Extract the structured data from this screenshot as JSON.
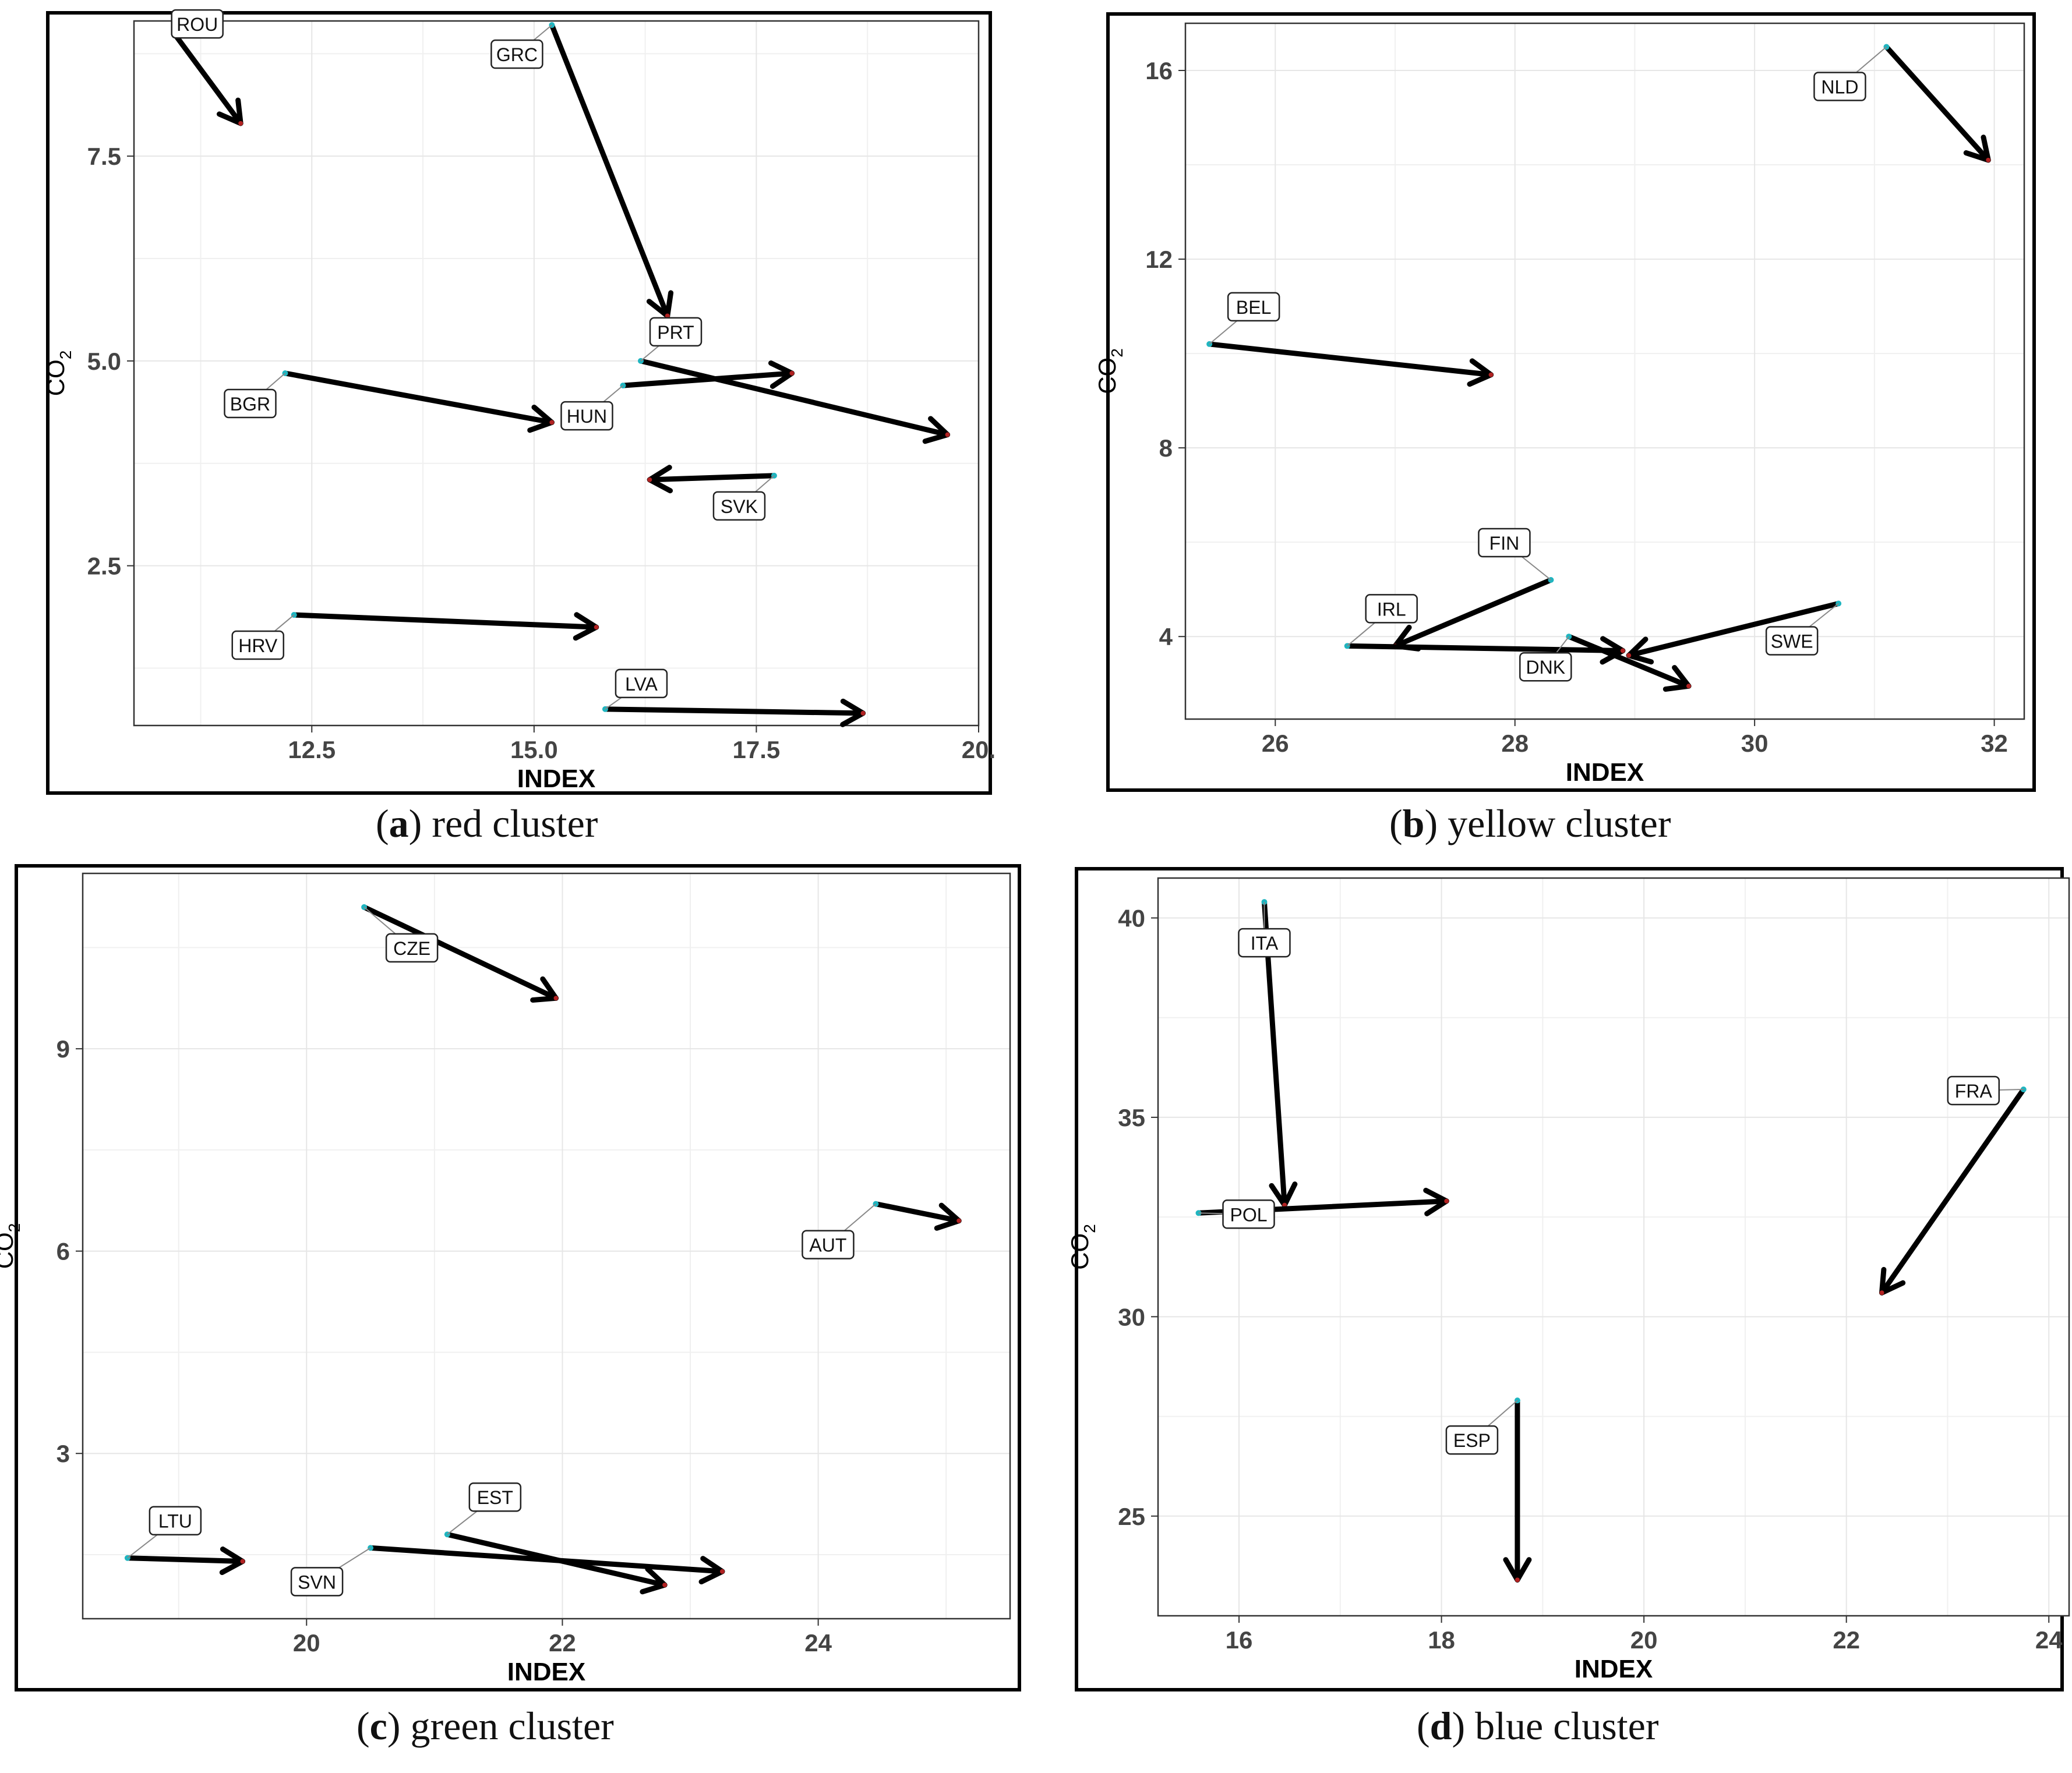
{
  "figure": {
    "panels": [
      {
        "letter": "a",
        "caption": "red cluster"
      },
      {
        "letter": "b",
        "caption": "yellow cluster"
      },
      {
        "letter": "c",
        "caption": "green cluster"
      },
      {
        "letter": "d",
        "caption": "blue cluster"
      }
    ]
  },
  "colors": {
    "start_point": "#1fb5c0",
    "end_point": "#b22222",
    "arrow": "#000000",
    "grid": "#e6e6e6",
    "tick_text": "#444444"
  },
  "chart_data": [
    {
      "type": "scatter",
      "title": "red cluster",
      "xlabel": "INDEX",
      "ylabel": "CO2",
      "xlim": [
        10.5,
        20.0
      ],
      "ylim": [
        0.55,
        9.15
      ],
      "xticks": [
        12.5,
        15.0,
        17.5,
        20.0
      ],
      "xtick_labels": [
        "12.5",
        "15.0",
        "17.5",
        "20."
      ],
      "yticks": [
        2.5,
        5.0,
        7.5
      ],
      "ytick_labels": [
        "2.5",
        "5.0",
        "7.5"
      ],
      "arrows": [
        {
          "label": "ROU",
          "x0": 10.95,
          "y0": 9.0,
          "x1": 11.7,
          "y1": 7.9
        },
        {
          "label": "GRC",
          "x0": 15.2,
          "y0": 9.1,
          "x1": 16.5,
          "y1": 5.55
        },
        {
          "label": "PRT",
          "x0": 16.2,
          "y0": 5.0,
          "x1": 19.65,
          "y1": 4.1
        },
        {
          "label": "HUN",
          "x0": 16.0,
          "y0": 4.7,
          "x1": 17.9,
          "y1": 4.85
        },
        {
          "label": "BGR",
          "x0": 12.2,
          "y0": 4.85,
          "x1": 15.2,
          "y1": 4.25
        },
        {
          "label": "SVK",
          "x0": 17.7,
          "y0": 3.6,
          "x1": 16.3,
          "y1": 3.55
        },
        {
          "label": "HRV",
          "x0": 12.3,
          "y0": 1.9,
          "x1": 15.7,
          "y1": 1.75
        },
        {
          "label": "LVA",
          "x0": 15.8,
          "y0": 0.75,
          "x1": 18.7,
          "y1": 0.7
        }
      ]
    },
    {
      "type": "scatter",
      "title": "yellow cluster",
      "xlabel": "INDEX",
      "ylabel": "CO2",
      "xlim": [
        25.25,
        32.25
      ],
      "ylim": [
        2.25,
        17.0
      ],
      "xticks": [
        26,
        28,
        30,
        32
      ],
      "xtick_labels": [
        "26",
        "28",
        "30",
        "32"
      ],
      "yticks": [
        4,
        8,
        12,
        16
      ],
      "ytick_labels": [
        "4",
        "8",
        "12",
        "16"
      ],
      "arrows": [
        {
          "label": "NLD",
          "x0": 31.1,
          "y0": 16.5,
          "x1": 31.95,
          "y1": 14.1
        },
        {
          "label": "BEL",
          "x0": 25.45,
          "y0": 10.2,
          "x1": 27.8,
          "y1": 9.55
        },
        {
          "label": "FIN",
          "x0": 28.3,
          "y0": 5.2,
          "x1": 27.0,
          "y1": 3.8
        },
        {
          "label": "IRL",
          "x0": 26.6,
          "y0": 3.8,
          "x1": 28.9,
          "y1": 3.7
        },
        {
          "label": "DNK",
          "x0": 28.45,
          "y0": 4.0,
          "x1": 29.45,
          "y1": 2.95
        },
        {
          "label": "SWE",
          "x0": 30.7,
          "y0": 4.7,
          "x1": 28.95,
          "y1": 3.6
        }
      ]
    },
    {
      "type": "scatter",
      "title": "green cluster",
      "xlabel": "INDEX",
      "ylabel": "CO2",
      "xlim": [
        18.25,
        25.5
      ],
      "ylim": [
        0.55,
        11.6
      ],
      "xticks": [
        20,
        22,
        24
      ],
      "xtick_labels": [
        "20",
        "22",
        "24"
      ],
      "yticks": [
        3,
        6,
        9
      ],
      "ytick_labels": [
        "3",
        "6",
        "9"
      ],
      "arrows": [
        {
          "label": "CZE",
          "x0": 20.45,
          "y0": 11.1,
          "x1": 21.95,
          "y1": 9.75
        },
        {
          "label": "AUT",
          "x0": 24.45,
          "y0": 6.7,
          "x1": 25.1,
          "y1": 6.45
        },
        {
          "label": "LTU",
          "x0": 18.6,
          "y0": 1.45,
          "x1": 19.5,
          "y1": 1.4
        },
        {
          "label": "SVN",
          "x0": 20.5,
          "y0": 1.6,
          "x1": 23.25,
          "y1": 1.25
        },
        {
          "label": "EST",
          "x0": 21.1,
          "y0": 1.8,
          "x1": 22.8,
          "y1": 1.05
        }
      ]
    },
    {
      "type": "scatter",
      "title": "blue cluster",
      "xlabel": "INDEX",
      "ylabel": "CO2",
      "xlim": [
        15.2,
        24.2
      ],
      "ylim": [
        22.5,
        41.0
      ],
      "xticks": [
        16,
        18,
        20,
        22,
        24
      ],
      "xtick_labels": [
        "16",
        "18",
        "20",
        "22",
        "24"
      ],
      "yticks": [
        25,
        30,
        35,
        40
      ],
      "ytick_labels": [
        "25",
        "30",
        "35",
        "40"
      ],
      "arrows": [
        {
          "label": "ITA",
          "x0": 16.25,
          "y0": 40.4,
          "x1": 16.45,
          "y1": 32.8
        },
        {
          "label": "FRA",
          "x0": 23.75,
          "y0": 35.7,
          "x1": 22.35,
          "y1": 30.6
        },
        {
          "label": "POL",
          "x0": 15.6,
          "y0": 32.6,
          "x1": 18.05,
          "y1": 32.9
        },
        {
          "label": "ESP",
          "x0": 18.75,
          "y0": 27.9,
          "x1": 18.75,
          "y1": 23.4
        }
      ]
    }
  ]
}
